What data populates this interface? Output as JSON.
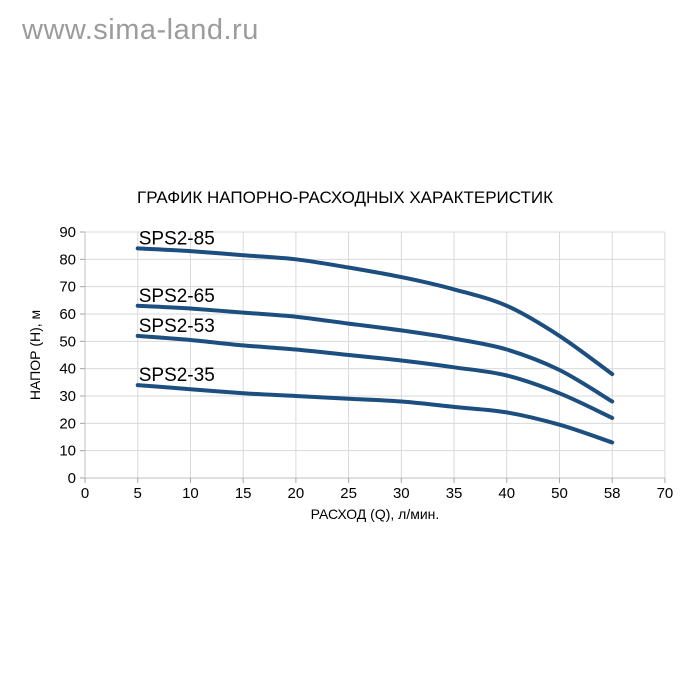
{
  "watermark": "www.sima-land.ru",
  "chart_data": {
    "type": "line",
    "title": "ГРАФИК НАПОРНО-РАСХОДНЫХ ХАРАКТЕРИСТИК",
    "xlabel": "РАСХОД (Q), л/мин.",
    "ylabel": "НАПОР (Н), м",
    "x_categories": [
      "0",
      "5",
      "10",
      "15",
      "20",
      "25",
      "30",
      "35",
      "40",
      "50",
      "58",
      "70"
    ],
    "y_ticks": [
      0,
      10,
      20,
      30,
      40,
      50,
      60,
      70,
      80,
      90
    ],
    "ylim": [
      0,
      90
    ],
    "grid": true,
    "legend_position": "inline-labels-at-curve-start",
    "line_color": "#1c4e80",
    "grid_color": "#d9d9d9",
    "axis_color": "#bfbfbf",
    "tick_color": "#a6a6a6",
    "watermark_color": "#9c9c9c",
    "series": [
      {
        "name": "SPS2-85",
        "x": [
          5,
          10,
          15,
          20,
          25,
          30,
          35,
          40,
          50,
          58
        ],
        "values": [
          84,
          83,
          81.5,
          80,
          77,
          73.5,
          69,
          63,
          52,
          38
        ]
      },
      {
        "name": "SPS2-65",
        "x": [
          5,
          10,
          15,
          20,
          25,
          30,
          35,
          40,
          50,
          58
        ],
        "values": [
          63,
          62,
          60.5,
          59,
          56.5,
          54,
          51,
          47,
          39.5,
          28
        ]
      },
      {
        "name": "SPS2-53",
        "x": [
          5,
          10,
          15,
          20,
          25,
          30,
          35,
          40,
          50,
          58
        ],
        "values": [
          52,
          50.5,
          48.5,
          47,
          45,
          43,
          40.5,
          37.5,
          31,
          22
        ]
      },
      {
        "name": "SPS2-35",
        "x": [
          5,
          10,
          15,
          20,
          25,
          30,
          35,
          40,
          50,
          58
        ],
        "values": [
          34,
          32.5,
          31,
          30,
          29,
          28,
          26,
          24,
          19.5,
          13
        ]
      }
    ]
  }
}
